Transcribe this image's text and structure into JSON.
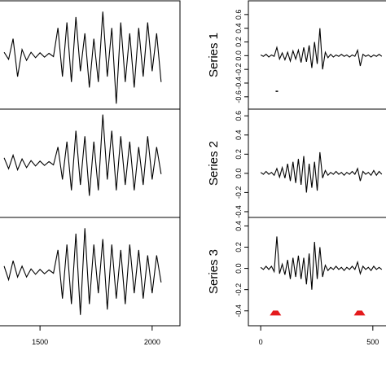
{
  "chart_data": [
    {
      "type": "line",
      "color": "#000000",
      "x": [
        1340,
        1360,
        1380,
        1400,
        1420,
        1440,
        1460,
        1480,
        1500,
        1520,
        1540,
        1560,
        1580,
        1600,
        1620,
        1640,
        1660,
        1680,
        1700,
        1720,
        1740,
        1760,
        1780,
        1800,
        1820,
        1840,
        1860,
        1880,
        1900,
        1920,
        1940,
        1960,
        1980,
        2000,
        2020,
        2040
      ],
      "values": [
        0.05,
        -0.08,
        0.3,
        -0.4,
        0.1,
        -0.1,
        0.05,
        -0.05,
        0.04,
        -0.04,
        0.03,
        -0.03,
        0.5,
        -0.4,
        0.6,
        -0.5,
        0.7,
        -0.3,
        0.4,
        -0.6,
        0.3,
        -0.5,
        0.8,
        -0.4,
        0.5,
        -0.9,
        0.6,
        -0.5,
        0.4,
        -0.6,
        0.5,
        -0.4,
        0.6,
        -0.3,
        0.4,
        -0.5
      ],
      "xlim": [
        1318,
        2124
      ],
      "ylim": [
        -1,
        1
      ]
    },
    {
      "type": "line",
      "color": "#000000",
      "x": [
        1340,
        1360,
        1380,
        1400,
        1420,
        1440,
        1460,
        1480,
        1500,
        1520,
        1540,
        1560,
        1580,
        1600,
        1620,
        1640,
        1660,
        1680,
        1700,
        1720,
        1740,
        1760,
        1780,
        1800,
        1820,
        1840,
        1860,
        1880,
        1900,
        1920,
        1940,
        1960,
        1980,
        2000,
        2020,
        2040
      ],
      "values": [
        0.1,
        -0.1,
        0.15,
        -0.12,
        0.08,
        -0.08,
        0.05,
        -0.05,
        0.04,
        -0.04,
        0.03,
        -0.03,
        0.3,
        -0.3,
        0.4,
        -0.5,
        0.6,
        -0.4,
        0.5,
        -0.6,
        0.4,
        -0.5,
        0.9,
        -0.3,
        0.6,
        -0.5,
        0.5,
        -0.4,
        0.4,
        -0.5,
        0.3,
        -0.4,
        0.5,
        -0.3,
        0.3,
        -0.2
      ],
      "xlim": [
        1318,
        2124
      ],
      "ylim": [
        -1,
        1
      ]
    },
    {
      "type": "line",
      "color": "#000000",
      "x": [
        1340,
        1360,
        1380,
        1400,
        1420,
        1440,
        1460,
        1480,
        1500,
        1520,
        1540,
        1560,
        1580,
        1600,
        1620,
        1640,
        1660,
        1680,
        1700,
        1720,
        1740,
        1760,
        1780,
        1800,
        1820,
        1840,
        1860,
        1880,
        1900,
        1920,
        1940,
        1960,
        1980,
        2000,
        2020,
        2040
      ],
      "values": [
        0.1,
        -0.15,
        0.2,
        -0.1,
        0.1,
        -0.1,
        0.05,
        -0.05,
        0.04,
        -0.04,
        0.03,
        -0.03,
        0.4,
        -0.5,
        0.5,
        -0.6,
        0.7,
        -0.8,
        0.8,
        -0.6,
        0.5,
        -0.4,
        0.6,
        -0.7,
        0.5,
        -0.5,
        0.4,
        -0.6,
        0.5,
        -0.4,
        0.4,
        -0.5,
        0.3,
        -0.4,
        0.3,
        -0.2
      ],
      "xlim": [
        1318,
        2124
      ],
      "ylim": [
        -1,
        1
      ],
      "xticks": [
        1500,
        2000
      ]
    },
    {
      "type": "line",
      "color": "#000000",
      "ylabel": "Series 1",
      "x": [
        0,
        12,
        24,
        36,
        48,
        60,
        72,
        84,
        96,
        108,
        120,
        132,
        144,
        156,
        168,
        180,
        192,
        204,
        216,
        228,
        240,
        252,
        264,
        276,
        288,
        300,
        312,
        324,
        336,
        348,
        360,
        372,
        384,
        396,
        408,
        420,
        432,
        444,
        456,
        468,
        480,
        492,
        504,
        516,
        528,
        540
      ],
      "values": [
        0.01,
        -0.01,
        0.02,
        -0.02,
        0.01,
        -0.01,
        0.12,
        -0.05,
        0.04,
        -0.06,
        0.05,
        -0.08,
        0.07,
        -0.05,
        0.08,
        -0.1,
        0.12,
        -0.09,
        0.15,
        -0.18,
        0.2,
        -0.12,
        0.4,
        -0.2,
        0.05,
        -0.03,
        0.02,
        -0.02,
        0.01,
        -0.01,
        0.02,
        -0.01,
        0.01,
        -0.02,
        0.01,
        -0.01,
        0.08,
        -0.15,
        0.02,
        -0.01,
        0.01,
        -0.02,
        0.01,
        -0.01,
        0.02,
        -0.01
      ],
      "outliers": {
        "x": [
          72
        ],
        "y": [
          -0.52
        ]
      },
      "xlim": [
        -55,
        566
      ],
      "ylim": [
        -0.78,
        0.8
      ],
      "yticks": [
        -0.6,
        -0.4,
        -0.2,
        {
          "value": 0,
          "label": "0.0"
        },
        0.2,
        0.4,
        0.6
      ]
    },
    {
      "type": "line",
      "color": "#000000",
      "ylabel": "Series 2",
      "x": [
        0,
        12,
        24,
        36,
        48,
        60,
        72,
        84,
        96,
        108,
        120,
        132,
        144,
        156,
        168,
        180,
        192,
        204,
        216,
        228,
        240,
        252,
        264,
        276,
        288,
        300,
        312,
        324,
        336,
        348,
        360,
        372,
        384,
        396,
        408,
        420,
        432,
        444,
        456,
        468,
        480,
        492,
        504,
        516,
        528,
        540
      ],
      "values": [
        0.01,
        -0.01,
        0.02,
        -0.01,
        0.01,
        -0.02,
        0.05,
        -0.04,
        0.06,
        -0.05,
        0.1,
        -0.08,
        0.12,
        -0.1,
        0.15,
        -0.12,
        0.18,
        -0.2,
        0.1,
        -0.15,
        0.12,
        -0.18,
        0.22,
        -0.05,
        0.03,
        -0.02,
        0.01,
        -0.01,
        0.02,
        -0.01,
        0.01,
        -0.02,
        0.01,
        -0.01,
        0.02,
        -0.01,
        0.05,
        -0.08,
        0.02,
        -0.01,
        0.01,
        -0.02,
        0.03,
        -0.02,
        0.02,
        -0.01
      ],
      "xlim": [
        -55,
        566
      ],
      "ylim": [
        -0.46,
        0.67
      ],
      "yticks": [
        -0.4,
        -0.2,
        {
          "value": 0,
          "label": "0.0"
        },
        0.2,
        0.4,
        0.6
      ]
    },
    {
      "type": "line",
      "color": "#000000",
      "ylabel": "Series 3",
      "x": [
        0,
        12,
        24,
        36,
        48,
        60,
        72,
        84,
        96,
        108,
        120,
        132,
        144,
        156,
        168,
        180,
        192,
        204,
        216,
        228,
        240,
        252,
        264,
        276,
        288,
        300,
        312,
        324,
        336,
        348,
        360,
        372,
        384,
        396,
        408,
        420,
        432,
        444,
        456,
        468,
        480,
        492,
        504,
        516,
        528,
        540
      ],
      "values": [
        0.01,
        -0.01,
        0.02,
        -0.01,
        0.02,
        -0.03,
        0.3,
        -0.05,
        0.04,
        -0.06,
        0.08,
        -0.1,
        0.1,
        -0.08,
        0.12,
        -0.1,
        0.1,
        -0.15,
        0.14,
        -0.2,
        0.25,
        -0.1,
        0.2,
        -0.08,
        0.03,
        -0.02,
        0.01,
        -0.01,
        0.02,
        -0.01,
        0.01,
        -0.02,
        0.01,
        -0.01,
        0.02,
        -0.01,
        0.06,
        -0.05,
        0.02,
        -0.01,
        0.01,
        -0.02,
        0.02,
        -0.01,
        0.01,
        -0.01
      ],
      "event_markers": {
        "x": [
          66,
          441
        ],
        "y": [
          -0.42,
          -0.42
        ],
        "color": "#e41a1c"
      },
      "xlim": [
        -55,
        566
      ],
      "ylim": [
        -0.54,
        0.48
      ],
      "yticks": [
        -0.4,
        -0.2,
        {
          "value": 0,
          "label": "0.0"
        },
        0.2,
        0.4
      ],
      "xticks": [
        0,
        500
      ]
    }
  ]
}
